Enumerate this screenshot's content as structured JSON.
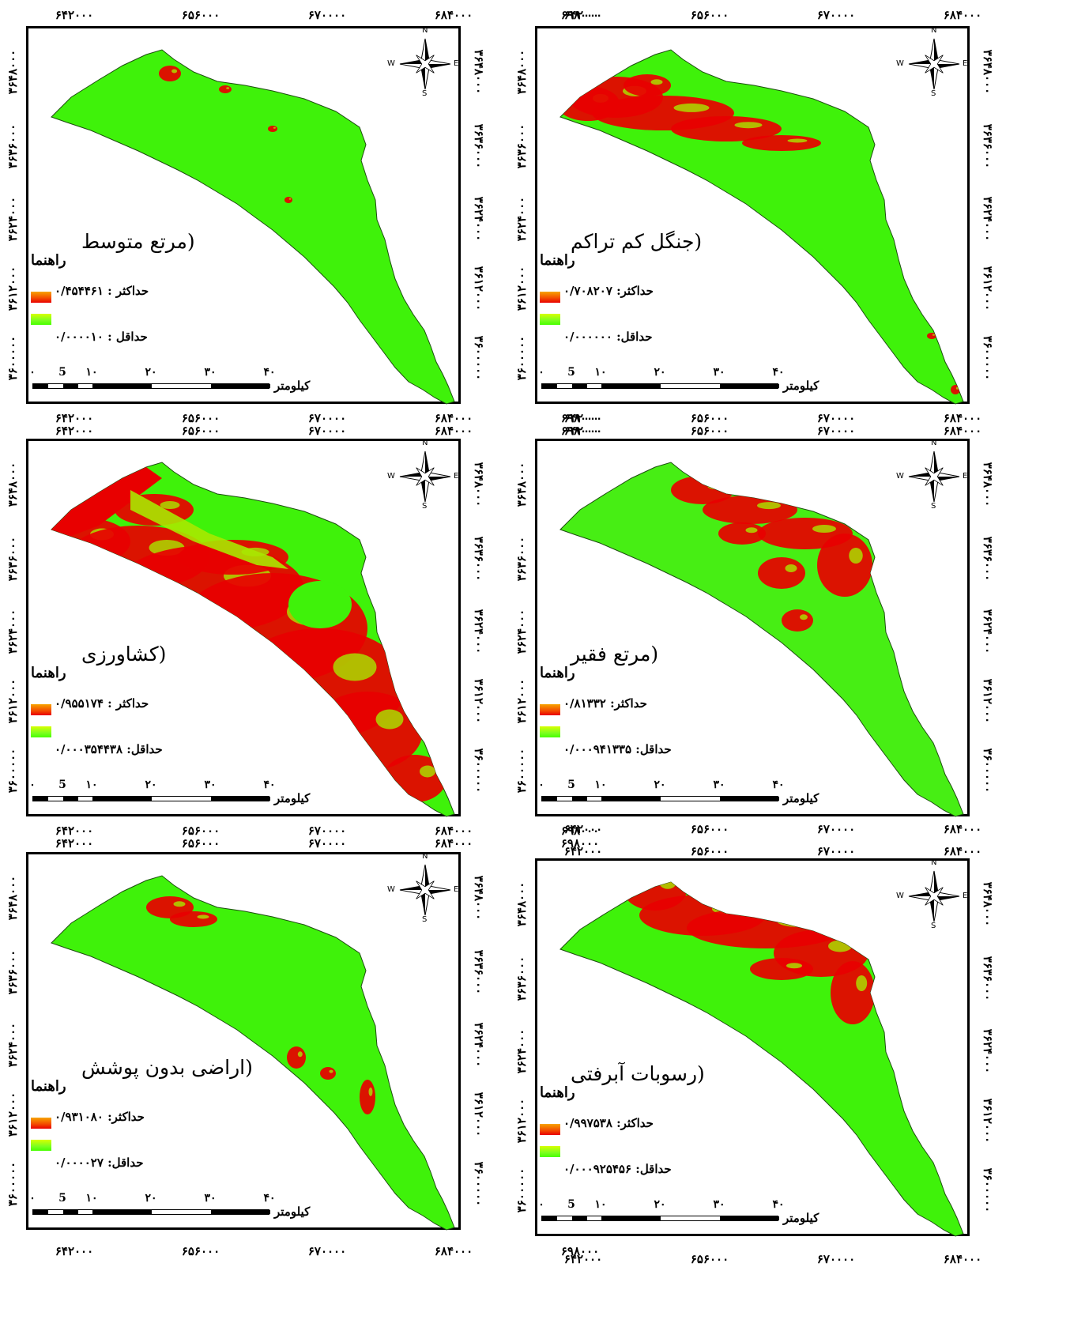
{
  "map_common": {
    "x_ticks": [
      "۶۴۲۰۰۰",
      "۶۵۶۰۰۰",
      "۶۷۰۰۰۰",
      "۶۸۴۰۰۰",
      "۶۹۸۰۰۰"
    ],
    "y_ticks": [
      "۳۶۴۸۰۰۰",
      "۳۶۳۶۰۰۰",
      "۳۶۲۴۰۰۰",
      "۳۶۱۲۰۰۰",
      "۳۶۰۰۰۰۰"
    ],
    "legend_title": "راهنما",
    "scalebar_labels": [
      "۰",
      "5",
      "۱۰",
      "۲۰",
      "۳۰",
      "۴۰"
    ],
    "scalebar_unit": "کیلومتر",
    "compass": {
      "n": "N",
      "s": "S",
      "e": "E",
      "w": "W"
    },
    "colors": {
      "high": "#e80000",
      "mid": "#a8e800",
      "low": "#3ff20a",
      "low_alt": "#47ee14"
    }
  },
  "maps": [
    {
      "id": "medium-rangeland",
      "title": "(مرتع متوسط",
      "max_label": "حداکثر :",
      "max_value": "۰/۴۵۴۴۶۱",
      "min_label": "حداقل :",
      "min_value": "۰/۰۰۰۰۱۰"
    },
    {
      "id": "low-density-forest",
      "title": "(جنگل کم تراکم",
      "max_label": "حداکثر:",
      "max_value": "۰/۷۰۸۲۰۷",
      "min_label": "حداقل:",
      "min_value": "۰/۰۰۰۰۰۰"
    },
    {
      "id": "agriculture",
      "title": "(کشاورزی",
      "max_label": "حداکثر :",
      "max_value": "۰/۹۵۵۱۷۴",
      "min_label": "حداقل:",
      "min_value": "۰/۰۰۰۳۵۴۴۳۸"
    },
    {
      "id": "poor-rangeland",
      "title": "(مرتع فقیر",
      "max_label": "حداکثر:",
      "max_value": "۰/۸۱۳۳۲",
      "min_label": "حداقل:",
      "min_value": "۰/۰۰۰۹۴۱۳۳۵"
    },
    {
      "id": "bare-land",
      "title": "(اراضی بدون پوشش",
      "max_label": "حداکثر:",
      "max_value": "۰/۹۳۱۰۸۰",
      "min_label": "حداقل:",
      "min_value": "۰/۰۰۰۰۲۷"
    },
    {
      "id": "alluvial-deposits",
      "title": "(رسوبات آبرفتی",
      "max_label": "حداکثر:",
      "max_value": "۰/۹۹۷۵۳۸",
      "min_label": "حداقل:",
      "min_value": "۰/۰۰۰۹۲۵۴۵۶"
    }
  ]
}
